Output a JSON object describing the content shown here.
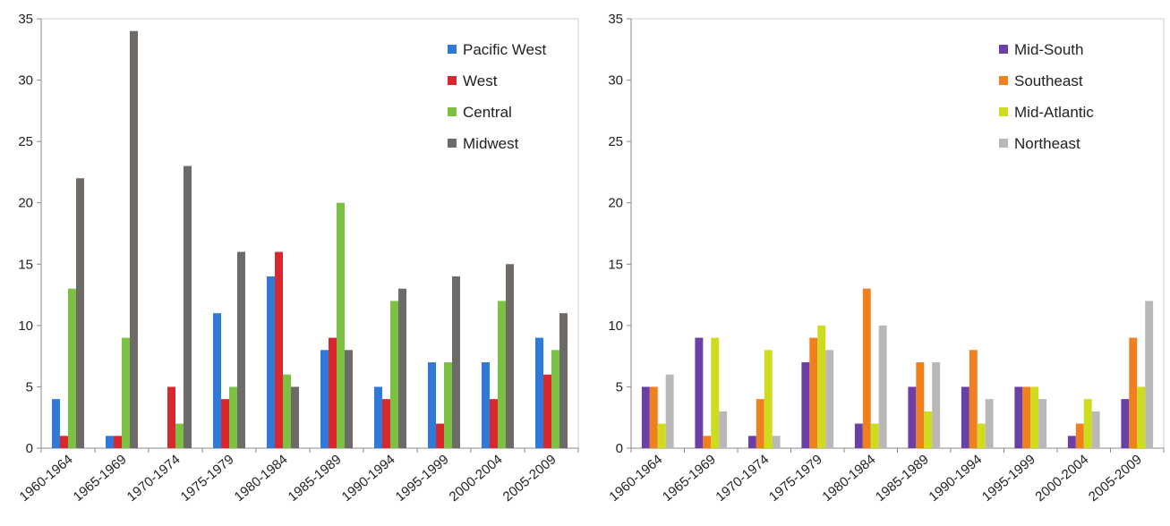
{
  "chart_data": [
    {
      "type": "bar",
      "categories": [
        "1960-1964",
        "1965-1969",
        "1970-1974",
        "1975-1979",
        "1980-1984",
        "1985-1989",
        "1990-1994",
        "1995-1999",
        "2000-2004",
        "2005-2009"
      ],
      "ylim": [
        0,
        35
      ],
      "yticks": [
        0,
        5,
        10,
        15,
        20,
        25,
        30,
        35
      ],
      "grid": false,
      "legend_position": "top-right",
      "series": [
        {
          "name": "Pacific West",
          "color": "#2f7ad6",
          "values": [
            4,
            1,
            0,
            11,
            14,
            8,
            5,
            7,
            7,
            9
          ]
        },
        {
          "name": "West",
          "color": "#d9272e",
          "values": [
            1,
            1,
            5,
            4,
            16,
            9,
            4,
            2,
            4,
            6
          ]
        },
        {
          "name": "Central",
          "color": "#7cc142",
          "values": [
            13,
            9,
            2,
            5,
            6,
            20,
            12,
            7,
            12,
            8
          ]
        },
        {
          "name": "Midwest",
          "color": "#6d6a68",
          "values": [
            22,
            34,
            23,
            16,
            5,
            8,
            13,
            14,
            15,
            11
          ]
        }
      ]
    },
    {
      "type": "bar",
      "categories": [
        "1960-1964",
        "1965-1969",
        "1970-1974",
        "1975-1979",
        "1980-1984",
        "1985-1989",
        "1990-1994",
        "1995-1999",
        "2000-2004",
        "2005-2009"
      ],
      "ylim": [
        0,
        35
      ],
      "yticks": [
        0,
        5,
        10,
        15,
        20,
        25,
        30,
        35
      ],
      "grid": false,
      "legend_position": "top-right",
      "series": [
        {
          "name": "Mid-South",
          "color": "#6a3fa6",
          "values": [
            5,
            9,
            1,
            7,
            2,
            5,
            5,
            5,
            1,
            4
          ]
        },
        {
          "name": "Southeast",
          "color": "#f07f1e",
          "values": [
            5,
            1,
            4,
            9,
            13,
            7,
            8,
            5,
            2,
            9
          ]
        },
        {
          "name": "Mid-Atlantic",
          "color": "#cfdc1e",
          "values": [
            2,
            9,
            8,
            10,
            2,
            3,
            2,
            5,
            4,
            5
          ]
        },
        {
          "name": "Northeast",
          "color": "#b9b7b8",
          "values": [
            6,
            3,
            1,
            8,
            10,
            7,
            4,
            4,
            3,
            12
          ]
        }
      ]
    }
  ]
}
